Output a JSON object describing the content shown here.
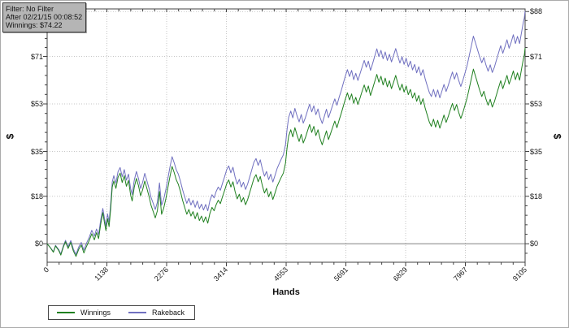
{
  "info_box": {
    "line1": "Filter: No Filter",
    "line2": "After 02/21/15 00:08:52",
    "line3": "Winnings: $74.22"
  },
  "axes": {
    "x_title": "Hands",
    "y_left_title": "$",
    "y_right_title": "$"
  },
  "legend": {
    "items": [
      {
        "label": "Winnings",
        "color": "#208020"
      },
      {
        "label": "Rakeback",
        "color": "#7070c0"
      }
    ]
  },
  "colors": {
    "winnings_line": "#208020",
    "rakeback_line": "#7070c0",
    "grid": "#c6c6c6",
    "zero_line": "#808080",
    "frame": "#404040",
    "info_box_bg": "#b5b5b5",
    "background": "#ffffff"
  },
  "chart_data": {
    "type": "line",
    "title": "",
    "xlabel": "Hands",
    "ylabel": "$",
    "xlim": [
      0,
      9105
    ],
    "ylim": [
      -7,
      89
    ],
    "grid": "dotted gray gridlines at major ticks, solid gray line at $0",
    "legend_position": "bottom-left",
    "x_ticks": [
      {
        "value": 0,
        "label": "0"
      },
      {
        "value": 1138,
        "label": "1138"
      },
      {
        "value": 2276,
        "label": "2276"
      },
      {
        "value": 3414,
        "label": "3414"
      },
      {
        "value": 4553,
        "label": "4553"
      },
      {
        "value": 5691,
        "label": "5691"
      },
      {
        "value": 6829,
        "label": "6829"
      },
      {
        "value": 7967,
        "label": "7967"
      },
      {
        "value": 9105,
        "label": "9105"
      }
    ],
    "y_ticks": [
      {
        "value": 88,
        "label": "$88"
      },
      {
        "value": 71,
        "label": "$71"
      },
      {
        "value": 53,
        "label": "$53"
      },
      {
        "value": 35,
        "label": "$35"
      },
      {
        "value": 18,
        "label": "$18"
      },
      {
        "value": 0,
        "label": "$0"
      }
    ],
    "series": [
      {
        "name": "Winnings",
        "color": "#208020",
        "final_value": 74.22
      },
      {
        "name": "Rakeback",
        "color": "#7070c0",
        "final_value": 88.2
      }
    ],
    "points_format": [
      "hands",
      "winnings",
      "rakeback"
    ],
    "points": [
      [
        0,
        0,
        0
      ],
      [
        60,
        -1.5,
        -1.4
      ],
      [
        120,
        -3.2,
        -3.0
      ],
      [
        160,
        -0.8,
        -0.6
      ],
      [
        220,
        -2.5,
        -2.2
      ],
      [
        260,
        -4.3,
        -3.9
      ],
      [
        310,
        -1.2,
        -0.7
      ],
      [
        350,
        0.8,
        1.3
      ],
      [
        400,
        -1.8,
        -1.2
      ],
      [
        450,
        0.5,
        1.2
      ],
      [
        500,
        -2.8,
        -2.0
      ],
      [
        550,
        -4.8,
        -4.0
      ],
      [
        600,
        -2.2,
        -1.3
      ],
      [
        650,
        -0.5,
        0.5
      ],
      [
        700,
        -3.5,
        -2.4
      ],
      [
        750,
        -1,
        0.2
      ],
      [
        800,
        1.2,
        2.4
      ],
      [
        850,
        3.8,
        5.1
      ],
      [
        900,
        1.5,
        2.9
      ],
      [
        940,
        4.2,
        5.6
      ],
      [
        980,
        2,
        3.5
      ],
      [
        1020,
        7.5,
        9.1
      ],
      [
        1060,
        11.8,
        13.4
      ],
      [
        1090,
        8.2,
        9.9
      ],
      [
        1120,
        5,
        6.7
      ],
      [
        1150,
        9.5,
        11.3
      ],
      [
        1180,
        6.5,
        8.3
      ],
      [
        1210,
        13,
        14.9
      ],
      [
        1240,
        21.5,
        23.4
      ],
      [
        1270,
        23.8,
        25.8
      ],
      [
        1310,
        21,
        23.0
      ],
      [
        1350,
        25.2,
        27.3
      ],
      [
        1390,
        26.8,
        28.9
      ],
      [
        1430,
        23.2,
        25.4
      ],
      [
        1470,
        25.8,
        28.1
      ],
      [
        1510,
        21.8,
        24.1
      ],
      [
        1550,
        24,
        26.4
      ],
      [
        1590,
        18.5,
        20.9
      ],
      [
        1620,
        16.2,
        18.7
      ],
      [
        1660,
        21.5,
        24.1
      ],
      [
        1700,
        24.8,
        27.4
      ],
      [
        1740,
        22,
        24.7
      ],
      [
        1780,
        18.2,
        20.9
      ],
      [
        1820,
        20.5,
        23.3
      ],
      [
        1860,
        23.8,
        26.7
      ],
      [
        1900,
        21,
        23.9
      ],
      [
        1940,
        18,
        21.0
      ],
      [
        1980,
        14.5,
        17.5
      ],
      [
        2020,
        12.2,
        15.3
      ],
      [
        2060,
        9.8,
        13.0
      ],
      [
        2100,
        12.5,
        15.7
      ],
      [
        2140,
        19.8,
        23.1
      ],
      [
        2180,
        11.2,
        14.6
      ],
      [
        2220,
        13.5,
        16.9
      ],
      [
        2260,
        17,
        20.5
      ],
      [
        2300,
        21.2,
        24.7
      ],
      [
        2340,
        25.5,
        29.1
      ],
      [
        2380,
        29.3,
        33.0
      ],
      [
        2420,
        27,
        30.7
      ],
      [
        2460,
        24.2,
        28.0
      ],
      [
        2500,
        22.5,
        26.4
      ],
      [
        2540,
        19.8,
        23.7
      ],
      [
        2580,
        16.5,
        20.5
      ],
      [
        2620,
        13.8,
        17.8
      ],
      [
        2660,
        11.2,
        15.3
      ],
      [
        2700,
        13,
        17.2
      ],
      [
        2740,
        10.5,
        14.7
      ],
      [
        2780,
        12.2,
        16.5
      ],
      [
        2820,
        9.5,
        13.8
      ],
      [
        2860,
        11.8,
        16.2
      ],
      [
        2900,
        8.8,
        13.3
      ],
      [
        2940,
        10.5,
        15.0
      ],
      [
        2980,
        8.2,
        12.8
      ],
      [
        3020,
        10.2,
        14.9
      ],
      [
        3060,
        7.8,
        12.5
      ],
      [
        3100,
        11.5,
        16.3
      ],
      [
        3140,
        13.8,
        18.6
      ],
      [
        3180,
        12.5,
        17.4
      ],
      [
        3220,
        14.8,
        19.8
      ],
      [
        3260,
        16.5,
        21.5
      ],
      [
        3300,
        15.2,
        20.3
      ],
      [
        3340,
        17.8,
        22.9
      ],
      [
        3380,
        20.2,
        25.4
      ],
      [
        3420,
        22.8,
        28.1
      ],
      [
        3460,
        24.2,
        29.5
      ],
      [
        3500,
        21.5,
        26.9
      ],
      [
        3540,
        23.5,
        29.0
      ],
      [
        3580,
        19.8,
        25.3
      ],
      [
        3620,
        17,
        22.6
      ],
      [
        3660,
        18.8,
        24.4
      ],
      [
        3700,
        15.8,
        21.5
      ],
      [
        3740,
        17.5,
        23.3
      ],
      [
        3780,
        14.8,
        20.6
      ],
      [
        3820,
        16.8,
        22.7
      ],
      [
        3860,
        19.5,
        25.4
      ],
      [
        3900,
        22.2,
        28.2
      ],
      [
        3940,
        24.8,
        30.9
      ],
      [
        3980,
        26.2,
        32.3
      ],
      [
        4020,
        23.5,
        29.7
      ],
      [
        4060,
        25.5,
        31.8
      ],
      [
        4100,
        22,
        28.3
      ],
      [
        4140,
        19.2,
        25.6
      ],
      [
        4180,
        21,
        27.4
      ],
      [
        4220,
        17.8,
        24.3
      ],
      [
        4260,
        19.8,
        26.4
      ],
      [
        4300,
        16.8,
        23.4
      ],
      [
        4340,
        19.2,
        25.9
      ],
      [
        4380,
        21.8,
        28.5
      ],
      [
        4420,
        23.5,
        30.3
      ],
      [
        4460,
        25.2,
        32.1
      ],
      [
        4500,
        26.8,
        33.7
      ],
      [
        4540,
        30.5,
        37.5
      ],
      [
        4570,
        36.2,
        43.2
      ],
      [
        4600,
        40.8,
        47.9
      ],
      [
        4640,
        43.2,
        50.3
      ],
      [
        4680,
        40.5,
        47.7
      ],
      [
        4720,
        44,
        51.3
      ],
      [
        4760,
        41.2,
        48.5
      ],
      [
        4800,
        38.8,
        46.2
      ],
      [
        4840,
        41.5,
        49.0
      ],
      [
        4880,
        38.2,
        45.7
      ],
      [
        4920,
        40.2,
        47.8
      ],
      [
        4960,
        42.8,
        50.4
      ],
      [
        5000,
        45.2,
        52.9
      ],
      [
        5040,
        42.2,
        50.0
      ],
      [
        5080,
        44.5,
        52.3
      ],
      [
        5120,
        41,
        48.9
      ],
      [
        5160,
        43.2,
        51.1
      ],
      [
        5200,
        39.8,
        47.8
      ],
      [
        5240,
        37.5,
        45.6
      ],
      [
        5280,
        40.2,
        48.3
      ],
      [
        5320,
        42.8,
        51.0
      ],
      [
        5360,
        39.5,
        47.8
      ],
      [
        5400,
        41.8,
        50.1
      ],
      [
        5440,
        44.2,
        52.6
      ],
      [
        5480,
        46.5,
        54.9
      ],
      [
        5520,
        44,
        52.5
      ],
      [
        5560,
        46.8,
        55.4
      ],
      [
        5600,
        49.2,
        57.8
      ],
      [
        5640,
        52,
        60.7
      ],
      [
        5680,
        54.8,
        63.5
      ],
      [
        5720,
        57.2,
        66.0
      ],
      [
        5760,
        54.5,
        63.4
      ],
      [
        5800,
        56.8,
        65.7
      ],
      [
        5840,
        53.2,
        62.2
      ],
      [
        5880,
        55.5,
        64.6
      ],
      [
        5920,
        52.8,
        61.9
      ],
      [
        5960,
        55.2,
        64.4
      ],
      [
        6000,
        57.8,
        67.0
      ],
      [
        6040,
        60.2,
        69.5
      ],
      [
        6080,
        57.5,
        66.9
      ],
      [
        6120,
        59.8,
        69.2
      ],
      [
        6160,
        56.2,
        65.7
      ],
      [
        6200,
        58.8,
        68.3
      ],
      [
        6240,
        61.5,
        71.1
      ],
      [
        6280,
        64.2,
        73.9
      ],
      [
        6320,
        61.2,
        70.9
      ],
      [
        6360,
        63.5,
        73.3
      ],
      [
        6400,
        60.2,
        70.1
      ],
      [
        6440,
        62.8,
        72.7
      ],
      [
        6480,
        59.5,
        69.5
      ],
      [
        6520,
        61.8,
        71.8
      ],
      [
        6560,
        58.8,
        68.9
      ],
      [
        6600,
        61.2,
        71.4
      ],
      [
        6640,
        63.8,
        74.0
      ],
      [
        6680,
        60.8,
        71.1
      ],
      [
        6720,
        58.2,
        68.5
      ],
      [
        6760,
        60.5,
        70.9
      ],
      [
        6800,
        57.5,
        68.0
      ],
      [
        6840,
        59.8,
        70.3
      ],
      [
        6880,
        56.5,
        67.1
      ],
      [
        6920,
        58.5,
        69.2
      ],
      [
        6960,
        55.2,
        65.9
      ],
      [
        7000,
        57.2,
        68.0
      ],
      [
        7040,
        54,
        64.8
      ],
      [
        7080,
        56.2,
        67.1
      ],
      [
        7120,
        52.8,
        63.8
      ],
      [
        7160,
        55,
        66.0
      ],
      [
        7200,
        51.5,
        62.6
      ],
      [
        7240,
        48.8,
        59.9
      ],
      [
        7280,
        46.2,
        57.4
      ],
      [
        7320,
        44.5,
        55.8
      ],
      [
        7360,
        47.2,
        58.5
      ],
      [
        7400,
        44.2,
        55.6
      ],
      [
        7440,
        46.8,
        58.3
      ],
      [
        7480,
        43.8,
        55.3
      ],
      [
        7520,
        46.2,
        57.8
      ],
      [
        7560,
        48.8,
        60.4
      ],
      [
        7600,
        46,
        57.7
      ],
      [
        7640,
        48.2,
        60.0
      ],
      [
        7680,
        50.8,
        62.6
      ],
      [
        7720,
        53.2,
        65.1
      ],
      [
        7760,
        50.5,
        62.4
      ],
      [
        7800,
        52.8,
        64.8
      ],
      [
        7840,
        49.8,
        61.9
      ],
      [
        7880,
        47.5,
        59.6
      ],
      [
        7920,
        49.8,
        62.0
      ],
      [
        7960,
        52.5,
        64.8
      ],
      [
        8000,
        55.2,
        67.5
      ],
      [
        8040,
        58.8,
        71.2
      ],
      [
        8080,
        62.5,
        74.9
      ],
      [
        8120,
        66.2,
        78.7
      ],
      [
        8160,
        63.5,
        76.1
      ],
      [
        8200,
        60.8,
        73.4
      ],
      [
        8240,
        58.2,
        70.9
      ],
      [
        8280,
        55.8,
        68.6
      ],
      [
        8320,
        57.8,
        70.6
      ],
      [
        8360,
        54.8,
        67.7
      ],
      [
        8400,
        52.5,
        65.4
      ],
      [
        8440,
        54.8,
        67.8
      ],
      [
        8480,
        51.8,
        64.9
      ],
      [
        8520,
        53.8,
        66.9
      ],
      [
        8560,
        56.5,
        69.7
      ],
      [
        8600,
        59.2,
        72.4
      ],
      [
        8640,
        61.8,
        75.1
      ],
      [
        8680,
        58.8,
        72.2
      ],
      [
        8720,
        61.2,
        74.6
      ],
      [
        8760,
        63.8,
        77.3
      ],
      [
        8800,
        60.5,
        74.1
      ],
      [
        8840,
        62.8,
        76.4
      ],
      [
        8880,
        65.5,
        79.2
      ],
      [
        8920,
        62.2,
        75.9
      ],
      [
        8960,
        64.8,
        78.6
      ],
      [
        9000,
        62,
        75.9
      ],
      [
        9040,
        66.5,
        80.4
      ],
      [
        9070,
        69.8,
        83.8
      ],
      [
        9090,
        71.5,
        85.5
      ],
      [
        9105,
        74.22,
        88.2
      ]
    ]
  }
}
